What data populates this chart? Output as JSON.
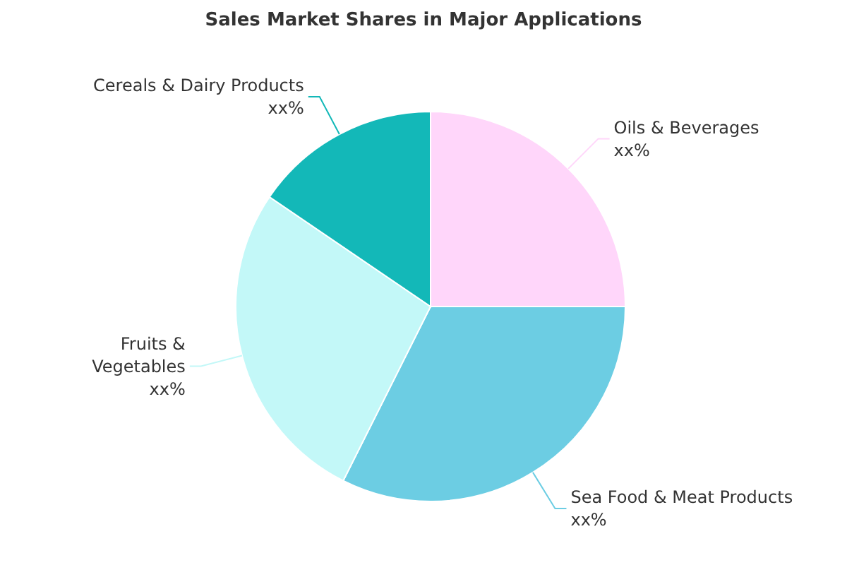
{
  "chart_data": {
    "type": "pie",
    "title": "Sales Market Shares in Major Applications",
    "categories": [
      "Oils & Beverages",
      "Sea Food & Meat Products",
      "Fruits & Vegetables",
      "Cereals & Dairy Products"
    ],
    "values": [
      25,
      32.4,
      27.1,
      15.5
    ],
    "colors": [
      "#ffd6fa",
      "#6ccde3",
      "#c3f8f8",
      "#13b8b8"
    ],
    "value_labels": [
      "xx%",
      "xx%",
      "xx%",
      "xx%"
    ],
    "legend": false
  }
}
